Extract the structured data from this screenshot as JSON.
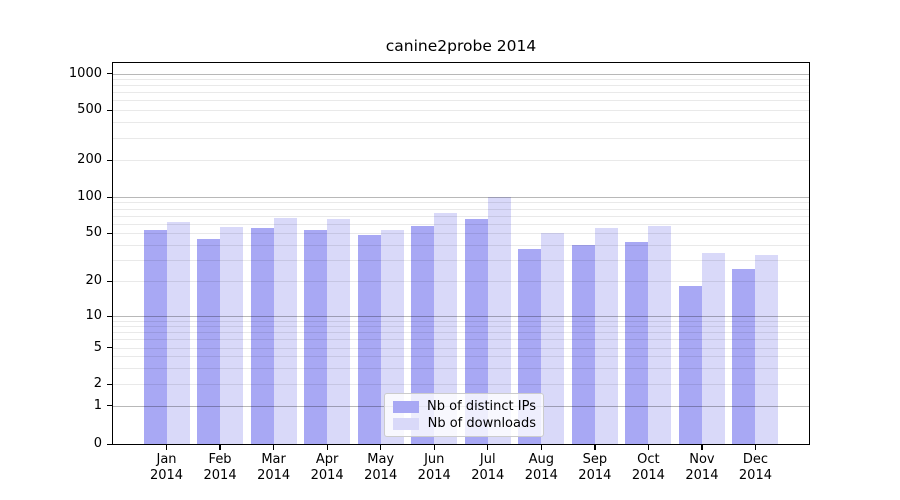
{
  "chart_data": {
    "type": "bar",
    "title": "canine2probe 2014",
    "categories": [
      "Jan 2014",
      "Feb 2014",
      "Mar 2014",
      "Apr 2014",
      "May 2014",
      "Jun 2014",
      "Jul 2014",
      "Aug 2014",
      "Sep 2014",
      "Oct 2014",
      "Nov 2014",
      "Dec 2014"
    ],
    "series": [
      {
        "name": "Nb of distinct IPs",
        "color": "#a8a8f4",
        "values": [
          53,
          45,
          55,
          53,
          48,
          57,
          66,
          37,
          40,
          42,
          18,
          25
        ]
      },
      {
        "name": "Nb of downloads",
        "color": "#d9d9f9",
        "values": [
          62,
          56,
          67,
          65,
          53,
          73,
          100,
          50,
          55,
          57,
          34,
          33
        ]
      }
    ],
    "xlabel": "",
    "ylabel": "",
    "yscale": "symlog",
    "yticks": [
      0,
      1,
      2,
      5,
      10,
      20,
      50,
      100,
      200,
      500,
      1000
    ],
    "ylim": [
      0,
      1200
    ],
    "grid": "horizontal, major and minor",
    "legend_position": "lower center",
    "colors": {
      "frame": "#000000",
      "major_grid": "#b8b8b8",
      "minor_grid": "#e9e9e9",
      "background": "#ffffff"
    }
  }
}
